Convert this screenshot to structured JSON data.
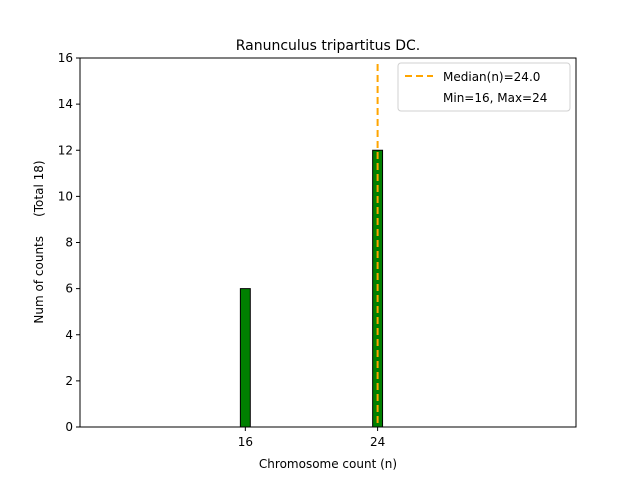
{
  "chart_data": {
    "type": "bar",
    "title": "Ranunculus tripartitus DC.",
    "xlabel": "Chromosome count (n)",
    "ylabel": "Num of counts     (Total 18)",
    "xlim": [
      6,
      36
    ],
    "ylim": [
      0,
      16
    ],
    "yticks": [
      0,
      2,
      4,
      6,
      8,
      10,
      12,
      14,
      16
    ],
    "xticks": [
      16,
      24
    ],
    "bars": [
      {
        "x": 16,
        "value": 6
      },
      {
        "x": 24,
        "value": 12
      }
    ],
    "bar_color": "#008000",
    "median": 24.0,
    "median_color": "#FFA500",
    "legend": {
      "position": "top-right",
      "entries": [
        "Median(n)=24.0",
        "Min=16, Max=24"
      ]
    }
  }
}
